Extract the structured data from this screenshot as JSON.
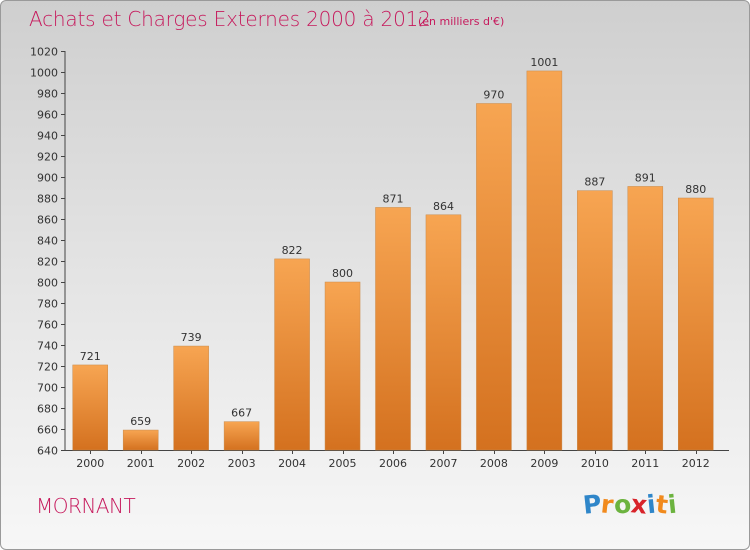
{
  "header": {
    "title": "Achats et Charges Externes 2000 à 2012",
    "unit": "(en milliers d'€)"
  },
  "footer": {
    "commune": "MORNANT",
    "logo_text": "Proxiti",
    "logo_letters": [
      {
        "ch": "P",
        "color": "#2f86c9"
      },
      {
        "ch": "r",
        "color": "#f18a1d"
      },
      {
        "ch": "o",
        "color": "#6cb33f"
      },
      {
        "ch": "x",
        "color": "#d8232a"
      },
      {
        "ch": "i",
        "color": "#2f86c9"
      },
      {
        "ch": "t",
        "color": "#f18a1d"
      },
      {
        "ch": "i",
        "color": "#6cb33f"
      }
    ]
  },
  "colors": {
    "bar_top": "#f7a552",
    "bar_bottom": "#d4711f",
    "title": "#c6195c"
  },
  "chart_data": {
    "type": "bar",
    "title": "Achats et Charges Externes 2000 à 2012",
    "subtitle": "(en milliers d'€)",
    "categories": [
      "2000",
      "2001",
      "2002",
      "2003",
      "2004",
      "2005",
      "2006",
      "2007",
      "2008",
      "2009",
      "2010",
      "2011",
      "2012"
    ],
    "values": [
      721,
      659,
      739,
      667,
      822,
      800,
      871,
      864,
      970,
      1001,
      887,
      891,
      880
    ],
    "ylim": [
      640,
      1020
    ],
    "ytick_step": 20,
    "grid": false,
    "data_labels": true
  }
}
